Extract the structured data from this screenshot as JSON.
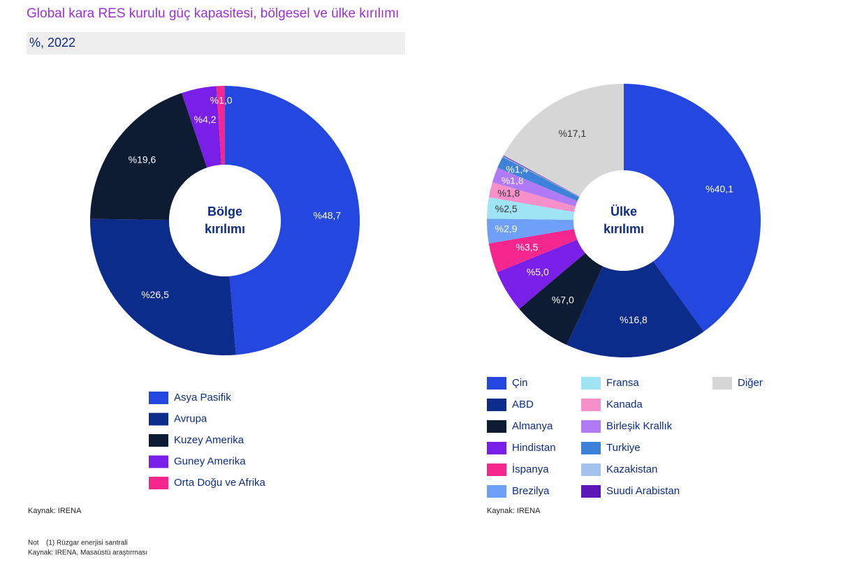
{
  "title": "Global kara RES kurulu güç kapasitesi, bölgesel ve ülke kırılımı",
  "subtitle": "%, 2022",
  "chart_data": [
    {
      "type": "pie",
      "categories": [
        "Asya Pasifik",
        "Avrupa",
        "Kuzey Amerika",
        "Guney Amerika",
        "Orta Doğu ve Afrika"
      ],
      "values": [
        48.7,
        26.5,
        19.6,
        4.2,
        1.0
      ],
      "value_labels": [
        "%48,7",
        "%26,5",
        "%19,6",
        "%4,2",
        "%1,0"
      ],
      "colors": [
        "#2447e0",
        "#0c2c8c",
        "#0d1b33",
        "#7a1fe8",
        "#f5278f"
      ],
      "center_label": [
        "Bölge",
        "kırılımı"
      ],
      "source": "Kaynak: IRENA"
    },
    {
      "type": "pie",
      "categories": [
        "Çin",
        "ABD",
        "Almanya",
        "Hindistan",
        "İspanya",
        "Brezilya",
        "Fransa",
        "Kanada",
        "Birleşik Krallık",
        "Turkiye",
        "Kazakistan",
        "Suudi Arabistan",
        "Diğer"
      ],
      "values": [
        40.1,
        16.8,
        7.0,
        5.0,
        3.5,
        2.9,
        2.5,
        1.8,
        1.8,
        1.4,
        0.1,
        0.1,
        17.1
      ],
      "value_labels": [
        "%40,1",
        "%16,8",
        "%7,0",
        "%5,0",
        "%3,5",
        "%2,9",
        "%2,5",
        "%1,8",
        "%1,8",
        "%1,4",
        null,
        null,
        "%17,1"
      ],
      "colors": [
        "#2447e0",
        "#0c2c8c",
        "#0d1b33",
        "#7a1fe8",
        "#f5278f",
        "#6ea0f7",
        "#9ee4f5",
        "#f78fcb",
        "#b07af5",
        "#3d82d9",
        "#a3c3ee",
        "#5d17b8",
        "#d6d6d6"
      ],
      "center_label": [
        "Ülke",
        "kırılımı"
      ],
      "source": "Kaynak: IRENA"
    }
  ],
  "footer": {
    "note_label": "Not",
    "note": "(1) Rüzgar enerjisi santrali",
    "source": "Kaynak: IRENA, Masaüstü araştırması"
  }
}
